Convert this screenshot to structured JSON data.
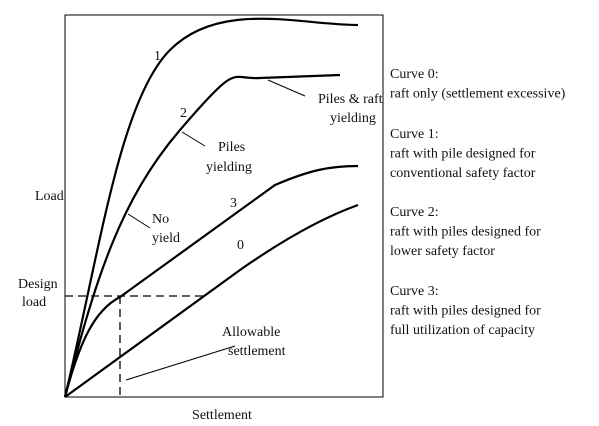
{
  "axes": {
    "y_label": "Load",
    "x_label": "Settlement",
    "design_load": [
      "Design",
      "load"
    ]
  },
  "curve_labels": [
    "0",
    "1",
    "2",
    "3"
  ],
  "annotations": {
    "piles_raft_yielding": [
      "Piles & raft",
      "yielding"
    ],
    "piles_yielding": [
      "Piles",
      "yielding"
    ],
    "no_yield": [
      "No",
      "yield"
    ],
    "allowable_settlement": [
      "Allowable",
      "settlement"
    ]
  },
  "legend": [
    {
      "title": "Curve 0:",
      "lines": [
        "raft only (settlement excessive)"
      ]
    },
    {
      "title": "Curve 1:",
      "lines": [
        "raft with pile designed for",
        "conventional safety factor"
      ]
    },
    {
      "title": "Curve 2:",
      "lines": [
        "raft with piles designed for",
        "lower safety factor"
      ]
    },
    {
      "title": "Curve 3:",
      "lines": [
        "raft with piles designed for",
        "full utilization of capacity"
      ]
    }
  ]
}
